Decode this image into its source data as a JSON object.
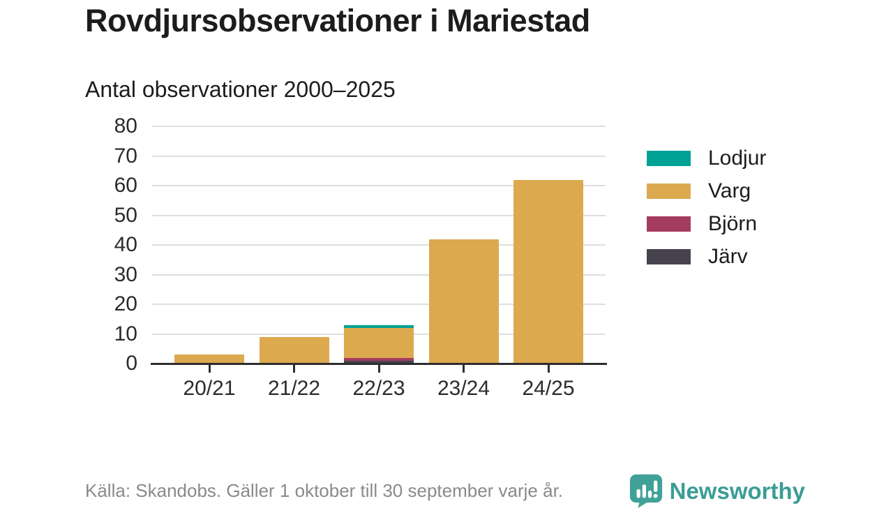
{
  "title": "Rovdjursobservationer i Mariestad",
  "subtitle": "Antal observationer 2000–2025",
  "footer": {
    "source_text": "Källa: Skandobs. Gäller 1 oktober till 30 september varje år.",
    "brand": "Newsworthy"
  },
  "colors": {
    "text_dark": "#1c1c1c",
    "text_gray": "#8a8a8a",
    "grid": "#dedede",
    "axis": "#2e2e2e",
    "brand_teal": "#3a9d95"
  },
  "chart_data": {
    "type": "bar",
    "stacked": true,
    "title": "Rovdjursobservationer i Mariestad",
    "subtitle": "Antal observationer 2000–2025",
    "categories": [
      "20/21",
      "21/22",
      "22/23",
      "23/24",
      "24/25"
    ],
    "series": [
      {
        "name": "Lodjur",
        "color": "#00a296",
        "values": [
          0,
          0,
          1,
          0,
          0
        ]
      },
      {
        "name": "Varg",
        "color": "#dca94f",
        "values": [
          3,
          9,
          10,
          42,
          62
        ]
      },
      {
        "name": "Björn",
        "color": "#a43c5f",
        "values": [
          0,
          0,
          1,
          0,
          0
        ]
      },
      {
        "name": "Järv",
        "color": "#46424e",
        "values": [
          0,
          0,
          1,
          0,
          0
        ]
      }
    ],
    "stack_order_bottom_to_top": [
      "Järv",
      "Björn",
      "Varg",
      "Lodjur"
    ],
    "totals": [
      3,
      9,
      13,
      42,
      62
    ],
    "yticks": [
      0,
      10,
      20,
      30,
      40,
      50,
      60,
      70,
      80
    ],
    "ylim": [
      0,
      80
    ],
    "grid": "horizontal",
    "legend_position": "right"
  }
}
